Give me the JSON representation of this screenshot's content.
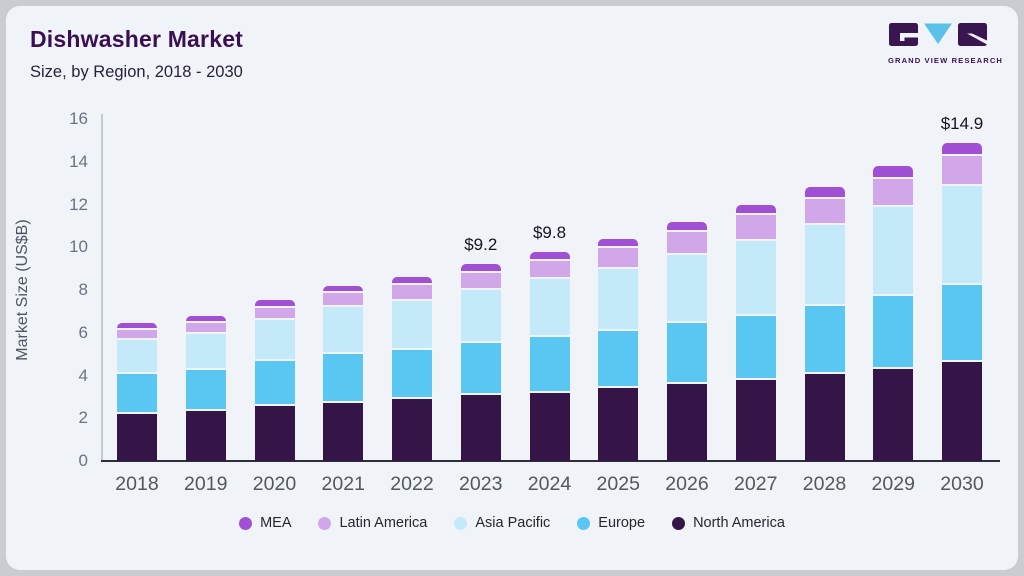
{
  "header": {
    "title": "Dishwasher Market",
    "subtitle": "Size, by Region, 2018 - 2030"
  },
  "logo": {
    "text": "GRAND VIEW RESEARCH",
    "block_color": "#3a1650",
    "triangle_color": "#5ac2e8"
  },
  "colors": {
    "card_background": "#f0f4f9",
    "frame": "#c9cdd2",
    "title": "#3b1053",
    "axis_dark": "#2e2e38",
    "axis_light": "#c4cbd2",
    "tick_text": "#6b7280"
  },
  "chart_data": {
    "type": "bar",
    "stacked": true,
    "title": "Dishwasher Market",
    "subtitle": "Size, by Region, 2018 - 2030",
    "ylabel": "Market Size (US$B)",
    "xlabel": "",
    "ylim": [
      0,
      16
    ],
    "yticks": [
      0,
      2,
      4,
      6,
      8,
      10,
      12,
      14,
      16
    ],
    "grid": false,
    "legend_position": "bottom",
    "categories": [
      "2018",
      "2019",
      "2020",
      "2021",
      "2022",
      "2023",
      "2024",
      "2025",
      "2026",
      "2027",
      "2028",
      "2029",
      "2030"
    ],
    "series": [
      {
        "name": "MEA",
        "color": "#a14fd4",
        "values": [
          0.3,
          0.35,
          0.4,
          0.35,
          0.35,
          0.4,
          0.45,
          0.45,
          0.5,
          0.5,
          0.55,
          0.6,
          0.65
        ]
      },
      {
        "name": "Latin America",
        "color": "#d2a7e9",
        "values": [
          0.5,
          0.5,
          0.55,
          0.65,
          0.75,
          0.8,
          0.85,
          0.95,
          1.05,
          1.2,
          1.2,
          1.3,
          1.4
        ]
      },
      {
        "name": "Asia Pacific",
        "color": "#c4e9f9",
        "values": [
          1.6,
          1.7,
          1.9,
          2.2,
          2.3,
          2.5,
          2.7,
          2.9,
          3.2,
          3.5,
          3.8,
          4.2,
          4.6
        ]
      },
      {
        "name": "Europe",
        "color": "#59c7f2",
        "values": [
          1.85,
          1.9,
          2.15,
          2.3,
          2.3,
          2.4,
          2.6,
          2.7,
          2.85,
          3.0,
          3.2,
          3.4,
          3.6
        ]
      },
      {
        "name": "North America",
        "color": "#351447",
        "values": [
          2.2,
          2.35,
          2.55,
          2.7,
          2.9,
          3.1,
          3.2,
          3.4,
          3.6,
          3.8,
          4.05,
          4.3,
          4.65
        ]
      }
    ],
    "totals": [
      6.45,
      6.8,
      7.55,
      8.2,
      8.6,
      9.2,
      9.8,
      10.4,
      11.2,
      12.0,
      12.8,
      13.8,
      14.9
    ],
    "annotations": [
      {
        "category": "2023",
        "text": "$9.2"
      },
      {
        "category": "2024",
        "text": "$9.8"
      },
      {
        "category": "2030",
        "text": "$14.9"
      }
    ]
  }
}
